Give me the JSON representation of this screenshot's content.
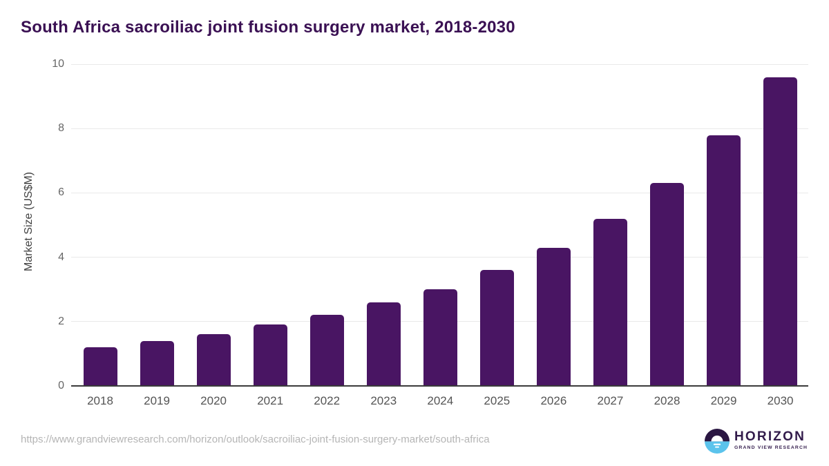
{
  "title": "South Africa sacroiliac joint fusion surgery market, 2018-2030",
  "chart_data": {
    "type": "bar",
    "categories": [
      "2018",
      "2019",
      "2020",
      "2021",
      "2022",
      "2023",
      "2024",
      "2025",
      "2026",
      "2027",
      "2028",
      "2029",
      "2030"
    ],
    "values": [
      1.2,
      1.4,
      1.6,
      1.9,
      2.2,
      2.6,
      3.0,
      3.6,
      4.3,
      5.2,
      6.3,
      7.8,
      9.6
    ],
    "title": "South Africa sacroiliac joint fusion surgery market, 2018-2030",
    "xlabel": "",
    "ylabel": "Market Size (US$M)",
    "ylim": [
      0,
      10
    ],
    "yticks": [
      0,
      2,
      4,
      6,
      8,
      10
    ],
    "grid": true,
    "legend": "none",
    "bar_color": "#491563"
  },
  "colors": {
    "title": "#3a1053",
    "bar": "#491563",
    "gridline": "#e9e9e9",
    "axis_line": "#3a3a3a",
    "tick_label": "#545454",
    "url_text": "#b5b5b5",
    "logo_dark": "#2a1642",
    "logo_blue": "#5bc3ec"
  },
  "footer": {
    "source_url": "https://www.grandviewresearch.com/horizon/outlook/sacroiliac-joint-fusion-surgery-market/south-africa",
    "logo": {
      "name": "HORIZON",
      "subtitle": "GRAND VIEW RESEARCH"
    }
  }
}
